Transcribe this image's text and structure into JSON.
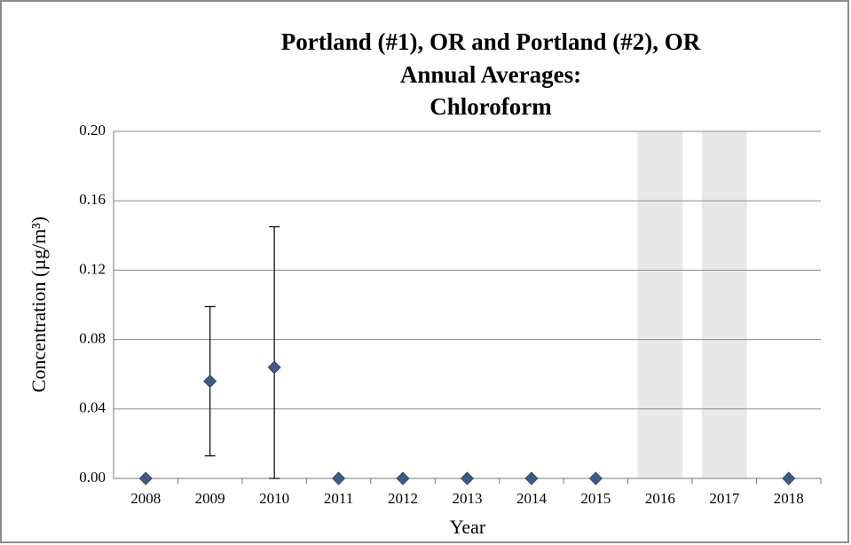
{
  "chart_data": {
    "type": "scatter",
    "title": [
      "Portland (#1), OR and Portland (#2), OR",
      "Annual Averages:",
      "Chloroform"
    ],
    "xlabel": "Year",
    "ylabel": "Concentration (µg/m³)",
    "categories": [
      "2008",
      "2009",
      "2010",
      "2011",
      "2012",
      "2013",
      "2014",
      "2015",
      "2016",
      "2017",
      "2018"
    ],
    "series": [
      {
        "values": [
          0,
          0.056,
          0.064,
          0,
          0,
          0,
          0,
          0,
          null,
          null,
          0
        ],
        "errors": [
          null,
          0.043,
          0.081,
          null,
          null,
          null,
          null,
          null,
          null,
          null,
          null
        ],
        "color": "#3f5b84"
      }
    ],
    "null_shading_color": "#e8e8e8",
    "ylim": [
      0,
      0.2
    ],
    "yticks": [
      {
        "value": 0,
        "label": "0.00"
      },
      0.04,
      0.08,
      0.12,
      0.16,
      {
        "value": 0.2,
        "label": "0.20"
      }
    ],
    "grid": true
  }
}
